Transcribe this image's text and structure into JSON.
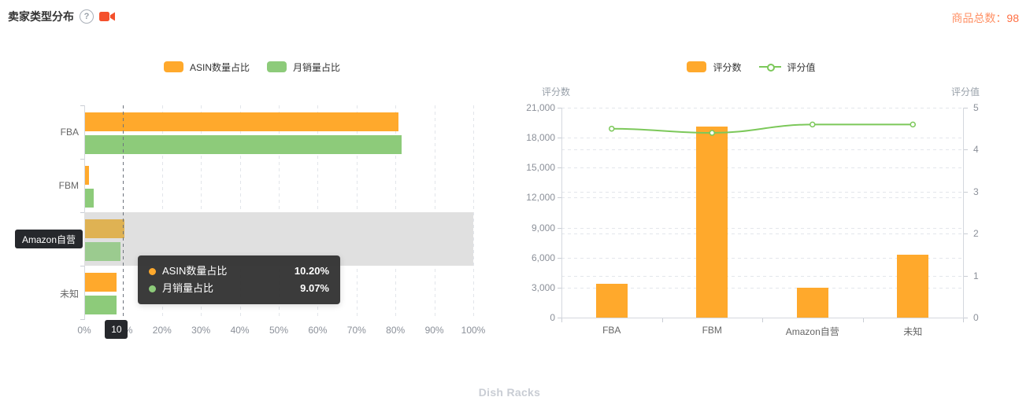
{
  "header": {
    "title": "卖家类型分布",
    "help_glyph": "?",
    "total_label": "商品总数：",
    "total_value": "98",
    "total_label_color": "#FF9166",
    "total_value_color": "#FF6F43",
    "video_icon_color": "#F4502C"
  },
  "footer": {
    "text": "Dish Racks",
    "color": "#C9CDD4"
  },
  "chart_data": [
    {
      "type": "bar",
      "orientation": "horizontal",
      "title": "卖家类型分布",
      "categories": [
        "FBA",
        "FBM",
        "Amazon自营",
        "未知"
      ],
      "series": [
        {
          "name": "ASIN数量占比",
          "color": "#FFA92C",
          "values": [
            80.61,
            1.02,
            10.2,
            8.16
          ]
        },
        {
          "name": "月销量占比",
          "color": "#8DCB7A",
          "values": [
            81.3,
            2.2,
            9.07,
            8.05
          ]
        }
      ],
      "xlim": [
        0,
        100
      ],
      "x_ticks": [
        "0%",
        "10%",
        "20%",
        "30%",
        "40%",
        "50%",
        "60%",
        "70%",
        "80%",
        "90%",
        "100%"
      ],
      "unit": "%",
      "grid": true,
      "legend_position": "top",
      "hover": {
        "category": "Amazon自营",
        "band_color": "#E0E0E0",
        "muted_bar_colors": [
          "#DFB253",
          "#9BCB8F"
        ],
        "pointer_value": 10,
        "pointer_value_label": "10",
        "pointer_label_bg": "#26282C",
        "category_label_bg": "#26282C"
      },
      "tooltip": {
        "bg": "rgba(48,48,48,0.95)",
        "rows": [
          {
            "series": "ASIN数量占比",
            "value": "10.20%",
            "dot_color": "#FFA92C"
          },
          {
            "series": "月销量占比",
            "value": "9.07%",
            "dot_color": "#8DCB7A"
          }
        ]
      }
    },
    {
      "type": "bar+line",
      "categories": [
        "FBA",
        "FBM",
        "Amazon自营",
        "未知"
      ],
      "series": [
        {
          "name": "评分数",
          "type": "bar",
          "axis": "left",
          "color": "#FFA92C",
          "values": [
            3400,
            19100,
            3000,
            6300
          ]
        },
        {
          "name": "评分值",
          "type": "line",
          "axis": "right",
          "color": "#7CC85A",
          "values": [
            4.5,
            4.4,
            4.6,
            4.6
          ]
        }
      ],
      "left_axis": {
        "name": "评分数",
        "min": 0,
        "max": 21000,
        "interval": 3000,
        "ticks": [
          "0",
          "3,000",
          "6,000",
          "9,000",
          "12,000",
          "15,000",
          "18,000",
          "21,000"
        ]
      },
      "right_axis": {
        "name": "评分值",
        "min": 0,
        "max": 5,
        "interval": 1,
        "ticks": [
          "0",
          "1",
          "2",
          "3",
          "4",
          "5"
        ]
      },
      "grid": true,
      "legend_position": "top"
    }
  ]
}
